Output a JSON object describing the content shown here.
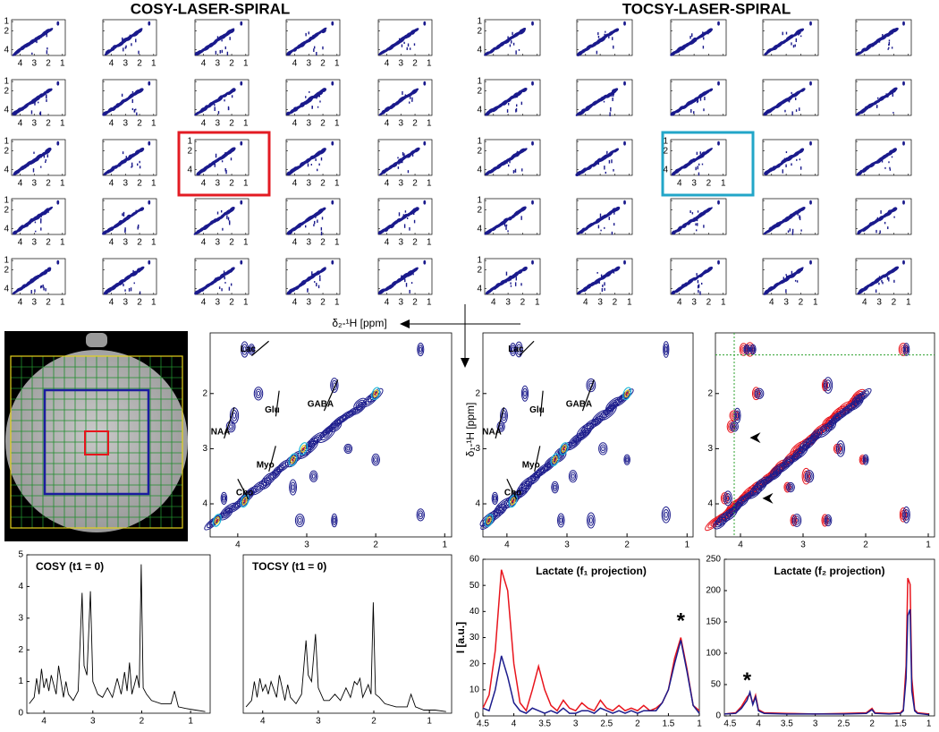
{
  "titles": [
    "COSY-LASER-SPIRAL",
    "TOCSY-LASER-SPIRAL"
  ],
  "f2_label": "δ₂-¹H [ppm]",
  "f1_label": "δ₁-¹H [ppm]",
  "thumbnail_axes": {
    "xlim": [
      4.6,
      0.8
    ],
    "ylim": [
      0.8,
      4.6
    ],
    "xticks": [
      4,
      3,
      2,
      1
    ],
    "yticks": [
      1,
      2,
      4
    ]
  },
  "contour_axes": {
    "xlim": [
      4.4,
      0.9
    ],
    "ylim": [
      0.9,
      4.6
    ],
    "xticks": [
      4,
      3,
      2,
      1
    ],
    "yticks": [
      2,
      3,
      4
    ]
  },
  "metabolites": [
    "Lac",
    "Glu",
    "GABA",
    "NAA",
    "Myo",
    "Cho"
  ],
  "chart_data": [
    {
      "type": "line",
      "title": "COSY (t1 = 0)",
      "x": [
        4.3,
        4.2,
        4.15,
        4.1,
        4.05,
        4.0,
        3.95,
        3.9,
        3.85,
        3.75,
        3.7,
        3.6,
        3.55,
        3.5,
        3.4,
        3.3,
        3.22,
        3.18,
        3.12,
        3.05,
        3.0,
        2.9,
        2.8,
        2.7,
        2.6,
        2.5,
        2.42,
        2.35,
        2.3,
        2.25,
        2.2,
        2.15,
        2.1,
        2.05,
        2.01,
        1.97,
        1.9,
        1.8,
        1.6,
        1.4,
        1.33,
        1.25,
        1.1,
        0.9,
        0.7
      ],
      "series": [
        {
          "color": "#000000",
          "values": [
            0.3,
            0.5,
            1.1,
            0.6,
            1.4,
            0.8,
            1.1,
            0.7,
            1.2,
            0.6,
            1.5,
            0.5,
            1.0,
            0.6,
            0.4,
            0.7,
            3.8,
            1.5,
            1.2,
            3.85,
            1.0,
            0.6,
            0.5,
            0.8,
            0.5,
            1.1,
            0.6,
            1.3,
            0.7,
            1.6,
            0.6,
            0.9,
            1.2,
            0.8,
            4.7,
            0.8,
            0.6,
            0.4,
            0.3,
            0.3,
            0.7,
            0.2,
            0.15,
            0.1,
            0.05
          ]
        }
      ],
      "xlim": [
        4.35,
        0.6
      ],
      "xticks": [
        4,
        3,
        2,
        1
      ],
      "ylim": [
        0,
        5
      ],
      "yticks": [
        0,
        1,
        2,
        3,
        4,
        5
      ]
    },
    {
      "type": "line",
      "title": "TOCSY (t1 = 0)",
      "x": [
        4.3,
        4.2,
        4.15,
        4.1,
        4.05,
        4.0,
        3.95,
        3.9,
        3.85,
        3.75,
        3.7,
        3.6,
        3.55,
        3.5,
        3.4,
        3.3,
        3.22,
        3.18,
        3.12,
        3.05,
        3.0,
        2.9,
        2.8,
        2.7,
        2.6,
        2.5,
        2.42,
        2.35,
        2.3,
        2.25,
        2.2,
        2.15,
        2.1,
        2.05,
        2.01,
        1.97,
        1.9,
        1.8,
        1.6,
        1.4,
        1.33,
        1.25,
        1.1,
        0.9,
        0.7
      ],
      "series": [
        {
          "color": "#000000",
          "values": [
            0.2,
            0.4,
            1.0,
            0.5,
            1.1,
            0.7,
            0.9,
            0.6,
            1.0,
            0.5,
            1.2,
            0.4,
            0.9,
            0.5,
            0.3,
            0.6,
            2.3,
            1.2,
            1.0,
            2.5,
            0.8,
            0.4,
            0.4,
            0.6,
            0.4,
            0.8,
            0.5,
            1.0,
            0.9,
            1.1,
            0.5,
            0.7,
            0.9,
            0.6,
            3.5,
            0.6,
            0.5,
            0.3,
            0.2,
            0.2,
            0.6,
            0.2,
            0.1,
            0.1,
            0.05
          ]
        }
      ],
      "xlim": [
        4.35,
        0.6
      ],
      "xticks": [
        4,
        3,
        2,
        1
      ],
      "ylim": [
        0,
        5
      ]
    },
    {
      "type": "line",
      "title": "Lactate (f₁ projection)",
      "ylabel": "I [a.u.]",
      "x": [
        4.5,
        4.4,
        4.3,
        4.2,
        4.1,
        4.0,
        3.9,
        3.8,
        3.7,
        3.6,
        3.5,
        3.4,
        3.3,
        3.2,
        3.1,
        3.0,
        2.9,
        2.8,
        2.7,
        2.6,
        2.5,
        2.4,
        2.3,
        2.2,
        2.1,
        2.0,
        1.9,
        1.8,
        1.7,
        1.6,
        1.5,
        1.4,
        1.3,
        1.2,
        1.1,
        1.0
      ],
      "series": [
        {
          "color": "#e8141c",
          "values": [
            3,
            8,
            25,
            56,
            48,
            20,
            5,
            2,
            10,
            19,
            10,
            4,
            2,
            6,
            3,
            2,
            5,
            3,
            2,
            6,
            3,
            2,
            4,
            2,
            3,
            2,
            4,
            2,
            3,
            5,
            10,
            22,
            30,
            18,
            4,
            2
          ]
        },
        {
          "color": "#1c1c8c",
          "values": [
            3,
            2,
            10,
            23,
            15,
            5,
            2,
            1,
            3,
            2,
            1,
            2,
            1,
            3,
            1,
            1,
            2,
            2,
            1,
            3,
            2,
            1,
            2,
            1,
            2,
            1,
            2,
            2,
            2,
            5,
            10,
            20,
            29,
            17,
            4,
            1
          ]
        }
      ],
      "annotations": [
        {
          "text": "*",
          "x": 1.3,
          "y": 36
        }
      ],
      "xlim": [
        4.5,
        1
      ],
      "xticks": [
        4.5,
        4,
        3.5,
        3,
        2.5,
        2,
        1.5,
        1
      ],
      "ylim": [
        0,
        60
      ],
      "yticks": [
        0,
        10,
        20,
        30,
        40,
        50,
        60
      ]
    },
    {
      "type": "line",
      "title": "Lactate (f₂ projection)",
      "x": [
        4.6,
        4.4,
        4.3,
        4.2,
        4.15,
        4.1,
        4.05,
        4.0,
        3.9,
        3.5,
        3.0,
        2.5,
        2.1,
        2.0,
        1.95,
        1.7,
        1.5,
        1.45,
        1.4,
        1.37,
        1.33,
        1.3,
        1.25,
        1.2,
        1.0
      ],
      "series": [
        {
          "color": "#e8141c",
          "values": [
            3,
            5,
            15,
            30,
            35,
            20,
            33,
            10,
            5,
            4,
            3,
            4,
            5,
            12,
            5,
            4,
            5,
            10,
            80,
            220,
            210,
            60,
            10,
            5,
            3
          ]
        },
        {
          "color": "#1c1c8c",
          "values": [
            3,
            4,
            12,
            25,
            38,
            18,
            30,
            8,
            4,
            3,
            3,
            3,
            4,
            10,
            4,
            3,
            4,
            8,
            60,
            160,
            170,
            40,
            8,
            4,
            2
          ]
        }
      ],
      "annotations": [
        {
          "text": "*",
          "x": 4.2,
          "y": 55
        }
      ],
      "xlim": [
        4.6,
        0.9
      ],
      "xticks": [
        4.5,
        4,
        3.5,
        3,
        2.5,
        2,
        1.5,
        1
      ],
      "ylim": [
        0,
        250
      ],
      "yticks": [
        0,
        50,
        100,
        150,
        200,
        250
      ]
    }
  ]
}
